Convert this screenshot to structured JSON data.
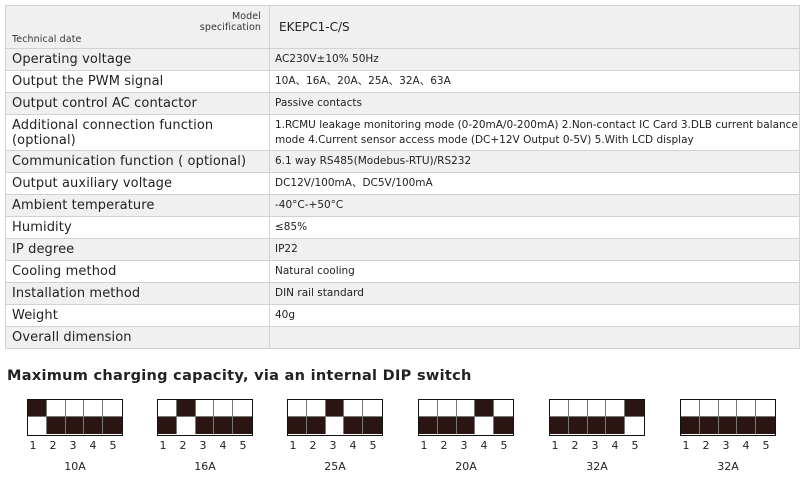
{
  "header": {
    "model_label": "Model\nspecification",
    "technical_label": "Technical date",
    "model_value": "EKEPC1-C/S"
  },
  "rows": [
    {
      "label": "Operating voltage",
      "value": "AC230V±10% 50Hz"
    },
    {
      "label": "Output the PWM signal",
      "value": "10A、16A、20A、25A、32A、63A"
    },
    {
      "label": "Output control AC contactor",
      "value": "Passive contacts"
    },
    {
      "label": "Additional connection function (optional)",
      "value": "1.RCMU leakage monitoring mode (0-20mA/0-200mA)  2.Non-contact IC Card  3.DLB current balance mode  4.Current sensor access mode (DC+12V Output 0-5V)  5.With LCD display"
    },
    {
      "label": "Communication function ( optional)",
      "value": "6.1 way RS485(Modebus-RTU)/RS232"
    },
    {
      "label": "Output auxiliary voltage",
      "value": "DC12V/100mA、DC5V/100mA"
    },
    {
      "label": "Ambient temperature",
      "value": "-40°C-+50°C"
    },
    {
      "label": "Humidity",
      "value": "≤85%"
    },
    {
      "label": "IP degree",
      "value": "IP22"
    },
    {
      "label": "Cooling method",
      "value": "Natural cooling"
    },
    {
      "label": "Installation method",
      "value": "DIN rail standard"
    },
    {
      "label": "Weight",
      "value": "40g"
    },
    {
      "label": "Overall dimension",
      "value": ""
    }
  ],
  "caption": "Maximum charging capacity, via an internal DIP switch",
  "dip_numbers": [
    "1",
    "2",
    "3",
    "4",
    "5"
  ],
  "dip_switches": [
    {
      "label": "10A",
      "top": [
        1,
        0,
        0,
        0,
        0
      ],
      "bottom": [
        0,
        1,
        1,
        1,
        1
      ]
    },
    {
      "label": "16A",
      "top": [
        0,
        1,
        0,
        0,
        0
      ],
      "bottom": [
        1,
        0,
        1,
        1,
        1
      ]
    },
    {
      "label": "25A",
      "top": [
        0,
        0,
        1,
        0,
        0
      ],
      "bottom": [
        1,
        1,
        0,
        1,
        1
      ]
    },
    {
      "label": "20A",
      "top": [
        0,
        0,
        0,
        1,
        0
      ],
      "bottom": [
        1,
        1,
        1,
        0,
        1
      ]
    },
    {
      "label": "32A",
      "top": [
        0,
        0,
        0,
        0,
        1
      ],
      "bottom": [
        1,
        1,
        1,
        1,
        0
      ]
    },
    {
      "label": "32A",
      "top": [
        0,
        0,
        0,
        0,
        0
      ],
      "bottom": [
        1,
        1,
        1,
        1,
        1
      ]
    }
  ],
  "colors": {
    "switch_on": "#2b1512",
    "switch_off": "#ffffff",
    "row_shade": "#f0f0f0",
    "border": "#d2d2d2"
  }
}
